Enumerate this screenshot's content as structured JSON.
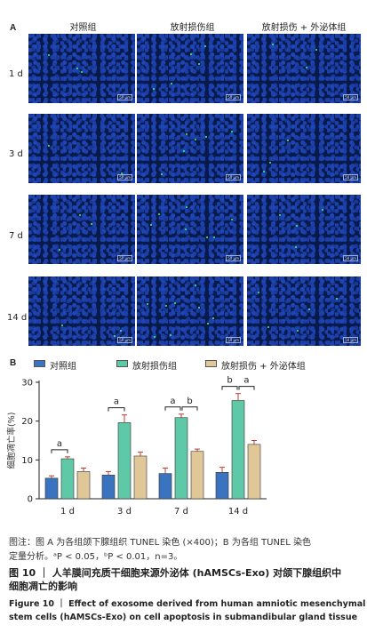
{
  "panel_a": {
    "letter": "A",
    "columns": [
      "对照组",
      "放射损伤组",
      "放射损伤 + 外泌体组"
    ],
    "rows": [
      "1 d",
      "3 d",
      "7 d",
      "14 d"
    ],
    "scale_bar": "50 µm"
  },
  "panel_b": {
    "letter": "B",
    "legend": [
      "对照组",
      "放射损伤组",
      "放射损伤 + 外泌体组"
    ],
    "ylabel": "细胞凋亡率(%)",
    "significance": [
      {
        "day": "1 d",
        "marks": [
          "a"
        ]
      },
      {
        "day": "3 d",
        "marks": [
          "a"
        ]
      },
      {
        "day": "7 d",
        "marks": [
          "a",
          "b"
        ]
      },
      {
        "day": "14 d",
        "marks": [
          "b",
          "a"
        ]
      }
    ]
  },
  "chart_data": {
    "type": "bar",
    "categories": [
      "1 d",
      "3 d",
      "7 d",
      "14 d"
    ],
    "ylabel": "细胞凋亡率(%)",
    "ylim": [
      0,
      30
    ],
    "yticks": [
      0,
      10,
      20,
      30
    ],
    "series": [
      {
        "name": "对照组",
        "values": [
          5.3,
          6.1,
          6.5,
          6.8
        ],
        "errors": [
          0.6,
          0.9,
          1.4,
          1.3
        ],
        "color": "#3a73c0"
      },
      {
        "name": "放射损伤组",
        "values": [
          10.3,
          19.6,
          20.9,
          25.3
        ],
        "errors": [
          0.5,
          2.0,
          0.9,
          1.8
        ],
        "color": "#5fc8a6"
      },
      {
        "name": "放射损伤 + 外泌体组",
        "values": [
          7.0,
          11.0,
          12.2,
          14.0
        ],
        "errors": [
          0.9,
          1.0,
          0.6,
          1.0
        ],
        "color": "#e0c797"
      }
    ]
  },
  "caption": {
    "note_line1": "图注：图 A 为各组颌下腺组织 TUNEL 染色 (×400)；B 为各组 TUNEL 染色",
    "note_line2": "定量分析。ᵃP < 0.05，ᵇP < 0.01，n=3。",
    "title_cn_line1": "图 10 ｜ 人羊膜间充质干细胞来源外泌体 (hAMSCs-Exo) 对颌下腺组织中",
    "title_cn_line2": "细胞凋亡的影响",
    "title_en_line1": "Figure 10 ｜ Effect of exosome derived from human amniotic mesenchymal",
    "title_en_line2": "stem cells (hAMSCs-Exo) on cell apoptosis in submandibular gland tissue"
  }
}
